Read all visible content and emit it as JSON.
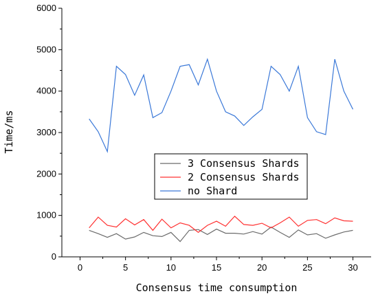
{
  "chart_data": {
    "type": "line",
    "title": "",
    "xlabel": "Consensus time consumption",
    "ylabel": "Time/ms",
    "xlim": [
      -2,
      32
    ],
    "ylim": [
      0,
      6000
    ],
    "x_ticks": [
      0,
      5,
      10,
      15,
      20,
      25,
      30
    ],
    "y_ticks": [
      0,
      1000,
      2000,
      3000,
      4000,
      5000,
      6000
    ],
    "grid": false,
    "legend_position": "center",
    "x": [
      1,
      2,
      3,
      4,
      5,
      6,
      7,
      8,
      9,
      10,
      11,
      12,
      13,
      14,
      15,
      16,
      17,
      18,
      19,
      20,
      21,
      22,
      23,
      24,
      25,
      26,
      27,
      28,
      29,
      30
    ],
    "series": [
      {
        "name": "3 Consensus Shards",
        "color": "#6b6b6b",
        "values": [
          640,
          560,
          470,
          560,
          430,
          480,
          590,
          510,
          490,
          590,
          370,
          640,
          660,
          540,
          670,
          570,
          570,
          550,
          610,
          550,
          720,
          590,
          470,
          650,
          530,
          560,
          450,
          530,
          600,
          640
        ]
      },
      {
        "name": "2 Consensus Shards",
        "color": "#ff3030",
        "values": [
          700,
          960,
          760,
          720,
          920,
          770,
          900,
          640,
          910,
          700,
          820,
          760,
          590,
          760,
          860,
          740,
          980,
          780,
          760,
          810,
          700,
          820,
          960,
          740,
          880,
          900,
          800,
          940,
          870,
          860
        ]
      },
      {
        "name": "no Shard",
        "color": "#3a78d8",
        "values": [
          3330,
          3020,
          2540,
          4600,
          4400,
          3900,
          4390,
          3360,
          3480,
          4000,
          4600,
          4640,
          4150,
          4770,
          4000,
          3500,
          3400,
          3170,
          3380,
          3560,
          4600,
          4400,
          4000,
          4600,
          3360,
          3020,
          2950,
          4770,
          4000,
          3560
        ]
      }
    ]
  }
}
